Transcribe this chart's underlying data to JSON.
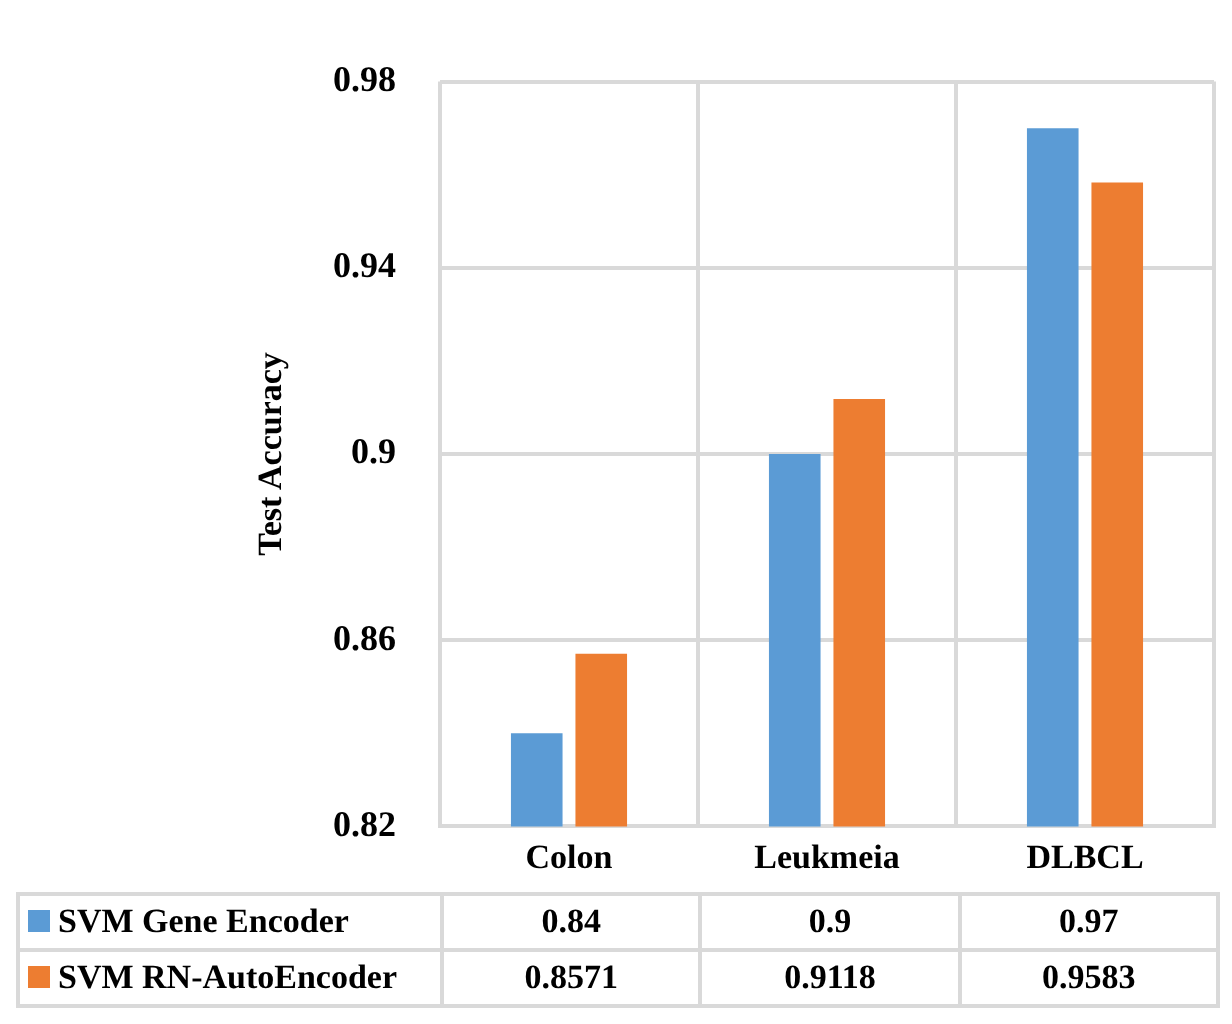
{
  "chart_data": {
    "type": "bar",
    "ylabel": "Test Accuracy",
    "categories": [
      "Colon",
      "Leukmeia",
      "DLBCL"
    ],
    "series": [
      {
        "name": "SVM Gene Encoder",
        "color": "#5b9bd5",
        "values": [
          0.84,
          0.9,
          0.97
        ]
      },
      {
        "name": "SVM RN-AutoEncoder",
        "color": "#ed7d31",
        "values": [
          0.8571,
          0.9118,
          0.9583
        ]
      }
    ],
    "ylim": [
      0.82,
      0.98
    ],
    "yticks": [
      0.82,
      0.86,
      0.9,
      0.94,
      0.98
    ],
    "grid": true,
    "legend": "bottom",
    "data_labels": true
  }
}
